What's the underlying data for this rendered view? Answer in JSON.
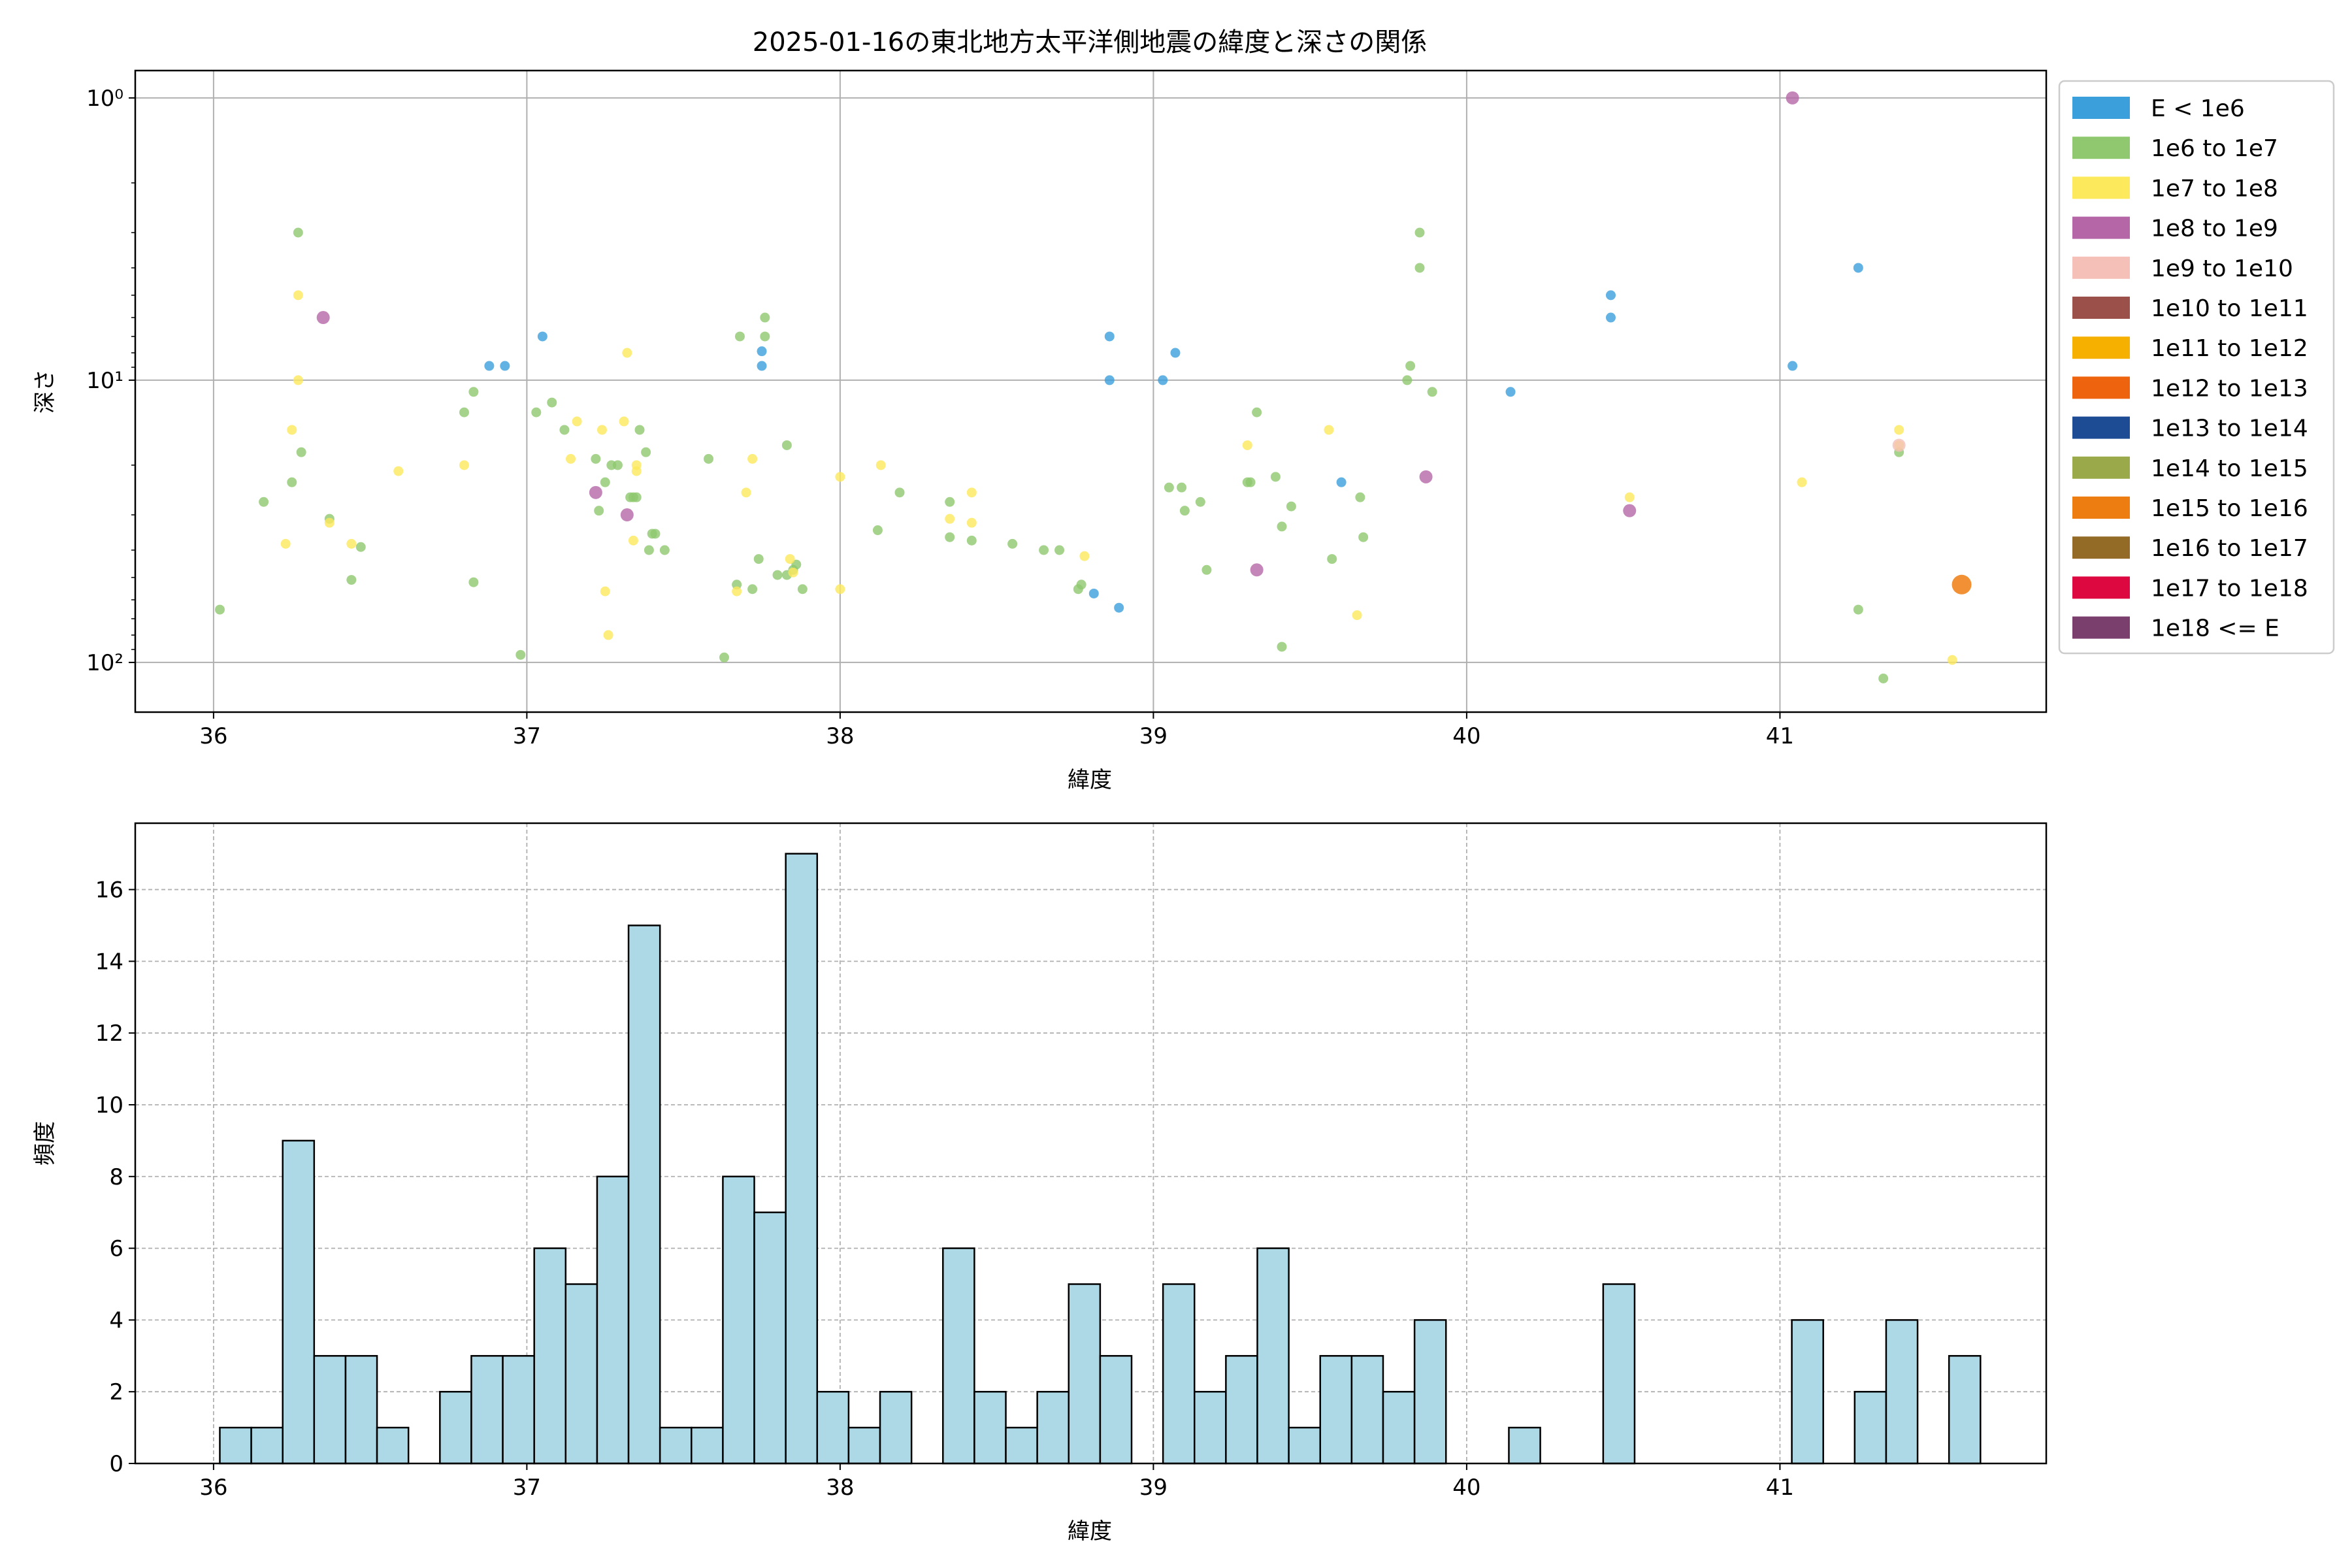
{
  "chart_data": [
    {
      "type": "scatter",
      "title": "2025-01-16の東北地方太平洋側地震の緯度と深さの関係",
      "xlabel": "緯度",
      "ylabel": "深さ",
      "xlim": [
        35.75,
        41.85
      ],
      "ylim": [
        150,
        0.8
      ],
      "y_scale": "log",
      "y_inverted": true,
      "grid": true,
      "x_ticks": [
        36,
        37,
        38,
        39,
        40,
        41
      ],
      "y_ticks": [
        {
          "value": 1,
          "label": "10⁰"
        },
        {
          "value": 10,
          "label": "10¹"
        },
        {
          "value": 100,
          "label": "10²"
        }
      ],
      "legend_position": "outside-right",
      "legend": [
        {
          "label": "E < 1e6",
          "color": "#3b9fdc"
        },
        {
          "label": "1e6 to 1e7",
          "color": "#8fc86e"
        },
        {
          "label": "1e7 to 1e8",
          "color": "#fde95c"
        },
        {
          "label": "1e8 to 1e9",
          "color": "#b566a6"
        },
        {
          "label": "1e9 to 1e10",
          "color": "#f4c0b8"
        },
        {
          "label": "1e10 to 1e11",
          "color": "#9b5049"
        },
        {
          "label": "1e11 to 1e12",
          "color": "#f6b000"
        },
        {
          "label": "1e12 to 1e13",
          "color": "#ee640e"
        },
        {
          "label": "1e13 to 1e14",
          "color": "#1d4b94"
        },
        {
          "label": "1e14 to 1e15",
          "color": "#9aaa4a"
        },
        {
          "label": "1e15 to 1e16",
          "color": "#ee7d11"
        },
        {
          "label": "1e16 to 1e17",
          "color": "#936a26"
        },
        {
          "label": "1e17 to 1e18",
          "color": "#dc083f"
        },
        {
          "label": "1e18 <= E",
          "color": "#7b3f6e"
        }
      ],
      "series": [
        {
          "name": "E < 1e6",
          "points": [
            [
              36.88,
              8.9
            ],
            [
              36.93,
              8.9
            ],
            [
              37.05,
              7
            ],
            [
              37.75,
              7.9
            ],
            [
              37.75,
              8.9
            ],
            [
              38.86,
              7
            ],
            [
              38.86,
              10
            ],
            [
              39.03,
              10
            ],
            [
              39.07,
              8
            ],
            [
              39.6,
              23
            ],
            [
              38.81,
              57
            ],
            [
              38.89,
              64
            ],
            [
              40.14,
              11
            ],
            [
              40.46,
              5
            ],
            [
              40.46,
              6
            ],
            [
              41.04,
              8.9
            ],
            [
              41.25,
              4
            ]
          ]
        },
        {
          "name": "1e6 to 1e7",
          "points": [
            [
              36.02,
              65
            ],
            [
              36.16,
              27
            ],
            [
              36.25,
              23
            ],
            [
              36.27,
              3
            ],
            [
              36.28,
              18
            ],
            [
              36.37,
              31
            ],
            [
              36.44,
              51
            ],
            [
              36.47,
              39
            ],
            [
              36.8,
              13
            ],
            [
              36.83,
              11
            ],
            [
              36.83,
              52
            ],
            [
              36.98,
              94
            ],
            [
              37.03,
              13
            ],
            [
              37.08,
              12
            ],
            [
              37.12,
              15
            ],
            [
              37.22,
              19
            ],
            [
              37.23,
              29
            ],
            [
              37.25,
              23
            ],
            [
              37.27,
              20
            ],
            [
              37.29,
              20
            ],
            [
              37.33,
              26
            ],
            [
              37.34,
              26
            ],
            [
              37.35,
              26
            ],
            [
              37.36,
              15
            ],
            [
              37.38,
              18
            ],
            [
              37.39,
              40
            ],
            [
              37.4,
              35
            ],
            [
              37.41,
              35
            ],
            [
              37.44,
              40
            ],
            [
              37.58,
              19
            ],
            [
              37.63,
              96
            ],
            [
              37.67,
              53
            ],
            [
              37.68,
              7
            ],
            [
              37.72,
              55
            ],
            [
              37.74,
              43
            ],
            [
              37.76,
              6
            ],
            [
              37.76,
              7
            ],
            [
              37.8,
              49
            ],
            [
              37.83,
              17
            ],
            [
              37.83,
              49
            ],
            [
              37.85,
              47
            ],
            [
              37.86,
              45
            ],
            [
              37.88,
              55
            ],
            [
              38.12,
              34
            ],
            [
              38.19,
              25
            ],
            [
              38.35,
              27
            ],
            [
              38.35,
              36
            ],
            [
              38.42,
              37
            ],
            [
              38.55,
              38
            ],
            [
              38.65,
              40
            ],
            [
              38.7,
              40
            ],
            [
              38.76,
              55
            ],
            [
              38.77,
              53
            ],
            [
              39.05,
              24
            ],
            [
              39.09,
              24
            ],
            [
              39.1,
              29
            ],
            [
              39.15,
              27
            ],
            [
              39.17,
              47
            ],
            [
              39.3,
              23
            ],
            [
              39.31,
              23
            ],
            [
              39.33,
              13
            ],
            [
              39.39,
              22
            ],
            [
              39.41,
              33
            ],
            [
              39.44,
              28
            ],
            [
              39.41,
              88
            ],
            [
              39.57,
              43
            ],
            [
              39.66,
              26
            ],
            [
              39.67,
              36
            ],
            [
              39.81,
              10
            ],
            [
              39.82,
              8.9
            ],
            [
              39.85,
              3
            ],
            [
              39.85,
              4
            ],
            [
              39.89,
              11
            ],
            [
              41.25,
              65
            ],
            [
              41.33,
              114
            ],
            [
              41.38,
              18
            ]
          ]
        },
        {
          "name": "1e7 to 1e8",
          "points": [
            [
              36.23,
              38
            ],
            [
              36.25,
              15
            ],
            [
              36.27,
              10
            ],
            [
              36.27,
              5
            ],
            [
              36.37,
              32
            ],
            [
              36.44,
              38
            ],
            [
              36.59,
              21
            ],
            [
              36.8,
              20
            ],
            [
              37.14,
              19
            ],
            [
              37.16,
              14
            ],
            [
              37.24,
              15
            ],
            [
              37.25,
              56
            ],
            [
              37.26,
              80
            ],
            [
              37.31,
              14
            ],
            [
              37.32,
              8
            ],
            [
              37.34,
              37
            ],
            [
              37.35,
              20
            ],
            [
              37.35,
              21
            ],
            [
              37.67,
              56
            ],
            [
              37.7,
              25
            ],
            [
              37.72,
              19
            ],
            [
              37.84,
              43
            ],
            [
              37.85,
              48
            ],
            [
              38,
              22
            ],
            [
              38.0,
              55
            ],
            [
              38.13,
              20
            ],
            [
              38.35,
              31
            ],
            [
              38.42,
              25
            ],
            [
              38.42,
              32
            ],
            [
              38.78,
              42
            ],
            [
              39.3,
              17
            ],
            [
              39.56,
              15
            ],
            [
              39.65,
              68
            ],
            [
              41.07,
              23
            ],
            [
              41.38,
              15
            ],
            [
              41.38,
              17
            ],
            [
              41.55,
              98
            ],
            [
              40.52,
              26
            ]
          ]
        },
        {
          "name": "1e8 to 1e9",
          "points": [
            [
              36.35,
              6
            ],
            [
              37.22,
              25
            ],
            [
              37.32,
              30
            ],
            [
              39.33,
              47
            ],
            [
              39.87,
              22
            ],
            [
              40.52,
              29
            ],
            [
              41.04,
              1
            ]
          ]
        },
        {
          "name": "1e9 to 1e10",
          "points": [
            [
              41.38,
              17
            ]
          ]
        },
        {
          "name": "1e15 to 1e16",
          "points": [
            [
              41.58,
              53
            ]
          ]
        }
      ]
    },
    {
      "type": "bar",
      "xlabel": "緯度",
      "ylabel": "頻度",
      "xlim": [
        35.75,
        41.85
      ],
      "ylim": [
        0,
        17.85
      ],
      "grid": true,
      "x_ticks": [
        36,
        37,
        38,
        39,
        40,
        41
      ],
      "y_ticks": [
        0,
        2,
        4,
        6,
        8,
        10,
        12,
        14,
        16
      ],
      "bar_color": "#add8e6",
      "edge_color": "#000000",
      "bin_start": 36.02,
      "bin_end": 41.64,
      "bin_count": 56,
      "values": [
        1,
        1,
        9,
        3,
        3,
        1,
        0,
        2,
        3,
        3,
        6,
        5,
        8,
        15,
        1,
        1,
        8,
        7,
        17,
        2,
        1,
        2,
        0,
        6,
        2,
        1,
        2,
        5,
        3,
        0,
        5,
        2,
        3,
        6,
        1,
        3,
        3,
        2,
        4,
        0,
        0,
        1,
        0,
        0,
        5,
        0,
        0,
        0,
        0,
        0,
        4,
        0,
        2,
        4,
        0,
        3
      ]
    }
  ]
}
